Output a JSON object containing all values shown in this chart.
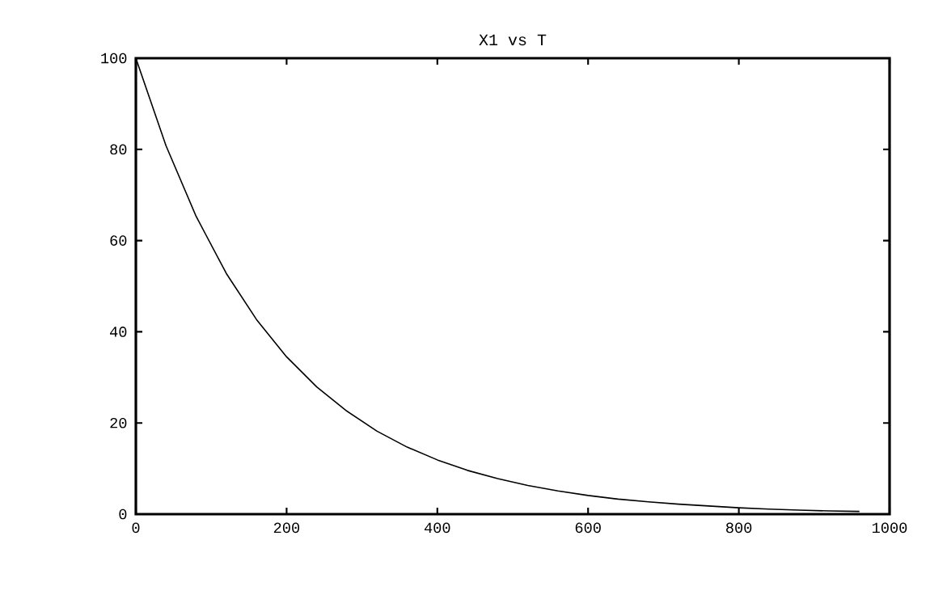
{
  "chart_data": {
    "type": "line",
    "title": "X1 vs T",
    "color": "#000000",
    "x": [
      0,
      40,
      80,
      120,
      160,
      200,
      240,
      280,
      320,
      360,
      400,
      440,
      480,
      520,
      560,
      600,
      640,
      680,
      720,
      760,
      800,
      840,
      880,
      920,
      960
    ],
    "values": [
      100,
      80.8,
      65.3,
      52.8,
      42.7,
      34.5,
      27.9,
      22.6,
      18.2,
      14.7,
      11.9,
      9.6,
      7.8,
      6.3,
      5.1,
      4.1,
      3.3,
      2.7,
      2.2,
      1.8,
      1.4,
      1.1,
      0.9,
      0.7,
      0.6
    ],
    "xlim": [
      0,
      1000
    ],
    "ylim": [
      0,
      100
    ],
    "xticks": [
      0,
      200,
      400,
      600,
      800,
      1000
    ],
    "yticks": [
      0,
      20,
      40,
      60,
      80,
      100
    ],
    "grid": false,
    "marker": "none",
    "line_style": "solid"
  }
}
